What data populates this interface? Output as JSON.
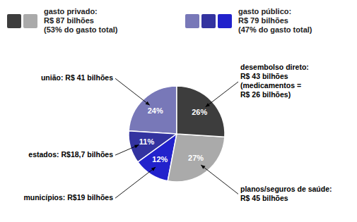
{
  "chart_data": {
    "type": "pie",
    "values": [
      24,
      11,
      12,
      27,
      26
    ],
    "value_labels": [
      "24%",
      "11%",
      "12%",
      "27%",
      "26%"
    ],
    "data_labels": true,
    "colors": [
      "#7878b8",
      "#3333a0",
      "#2222cc",
      "#aaaaaa",
      "#3d3d3d"
    ],
    "annotations": [
      "união: R$ 41 bilhões",
      "estados: R$18,7 bilhões",
      "municípios: R$19 bilhões",
      "planos/seguros de saúde:\nR$ 45 bilhões",
      "desembolso direto:\nR$ 43 bilhões\n(medicamentos =\nR$ 26 bilhões)"
    ],
    "groups": [
      {
        "text": "gasto privado:\nR$ 87 bilhões\n(53% do gasto total)",
        "colors": [
          "#3d3d3d",
          "#aaaaaa"
        ]
      },
      {
        "text": "gasto público:\nR$ 79 bilhões\n(47% do gasto total)",
        "colors": [
          "#7878b8",
          "#3333a0",
          "#2222cc"
        ]
      }
    ]
  }
}
